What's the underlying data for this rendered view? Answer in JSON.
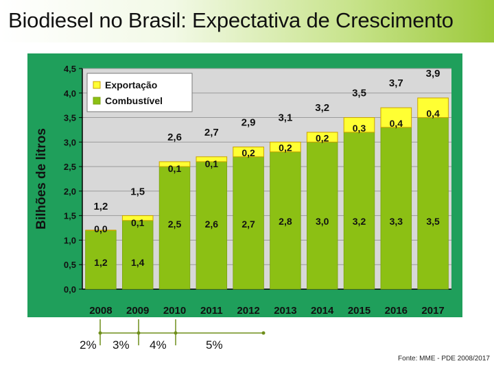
{
  "title": "Biodiesel no Brasil: Expectativa de Crescimento",
  "source": "Fonte: MME - PDE 2008/2017",
  "mandates": [
    "2%",
    "3%",
    "4%",
    "5%"
  ],
  "colors": {
    "panel": "#1f9f5b",
    "plot": "#d8d8d8",
    "combustivel": "#8cc014",
    "exportacao": "#ffff33",
    "accent": "#6e8e1a"
  },
  "chart_data": {
    "type": "bar",
    "stacked": true,
    "categories": [
      "2008",
      "2009",
      "2010",
      "2011",
      "2012",
      "2013",
      "2014",
      "2015",
      "2016",
      "2017"
    ],
    "series": [
      {
        "name": "Combustível",
        "values": [
          1.2,
          1.4,
          2.5,
          2.6,
          2.7,
          2.8,
          3.0,
          3.2,
          3.3,
          3.5
        ],
        "labels": [
          "1,2",
          "1,4",
          "2,5",
          "2,6",
          "2,7",
          "2,8",
          "3,0",
          "3,2",
          "3,3",
          "3,5"
        ]
      },
      {
        "name": "Exportação",
        "values": [
          0.0,
          0.1,
          0.1,
          0.1,
          0.2,
          0.2,
          0.2,
          0.3,
          0.4,
          0.4
        ],
        "labels": [
          "0,0",
          "0,1",
          "0,1",
          "0,1",
          "0,2",
          "0,2",
          "0,2",
          "0,3",
          "0,4",
          "0,4"
        ]
      }
    ],
    "totals": [
      1.2,
      1.5,
      2.6,
      2.7,
      2.9,
      3.1,
      3.2,
      3.5,
      3.7,
      3.9
    ],
    "total_labels": [
      "1,2",
      "1,5",
      "2,6",
      "2,7",
      "2,9",
      "3,1",
      "3,2",
      "3,5",
      "3,7",
      "3,9"
    ],
    "ylabel": "Bilhões de litros",
    "xlabel": "",
    "ylim": [
      0,
      4.5
    ],
    "yticks": [
      0,
      0.5,
      1.0,
      1.5,
      2.0,
      2.5,
      3.0,
      3.5,
      4.0,
      4.5
    ],
    "ytick_labels": [
      "0,0",
      "0,5",
      "1,0",
      "1,5",
      "2,0",
      "2,5",
      "3,0",
      "3,5",
      "4,0",
      "4,5"
    ],
    "legend": [
      "Exportação",
      "Combustível"
    ],
    "legend_position": "top-left"
  }
}
